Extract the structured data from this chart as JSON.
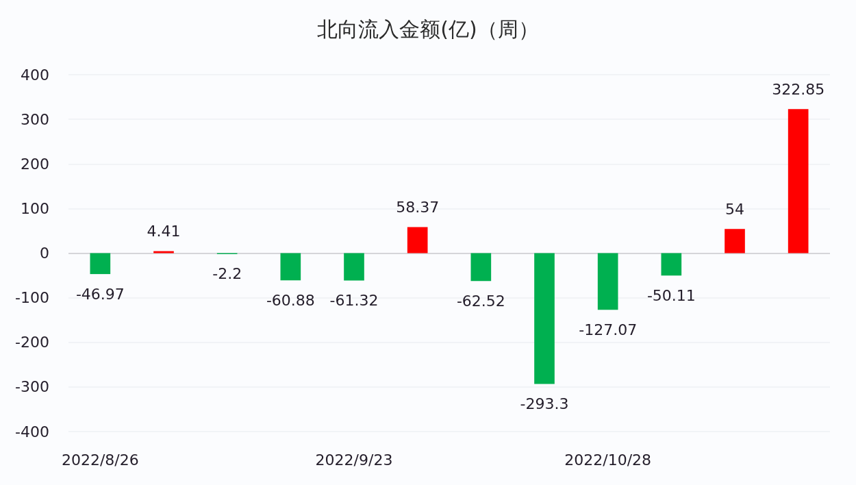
{
  "chart_data": {
    "type": "bar",
    "title": "北向流入金额(亿)（周）",
    "categories": [
      "2022/8/26",
      null,
      null,
      null,
      "2022/9/23",
      null,
      null,
      null,
      "2022/10/28",
      null,
      null,
      null
    ],
    "values": [
      -46.97,
      4.41,
      -2.2,
      -60.88,
      -61.32,
      58.37,
      -62.52,
      -293.3,
      -127.07,
      -50.11,
      54,
      322.85
    ],
    "colors": [
      "#00b050",
      "#ff0000",
      "#00b050",
      "#00b050",
      "#00b050",
      "#ff0000",
      "#00b050",
      "#00b050",
      "#00b050",
      "#00b050",
      "#ff0000",
      "#ff0000"
    ],
    "ylim": [
      -400,
      400
    ],
    "yticks": [
      -400,
      -300,
      -200,
      -100,
      0,
      100,
      200,
      300,
      400
    ],
    "grid": "y",
    "data_labels": true
  }
}
